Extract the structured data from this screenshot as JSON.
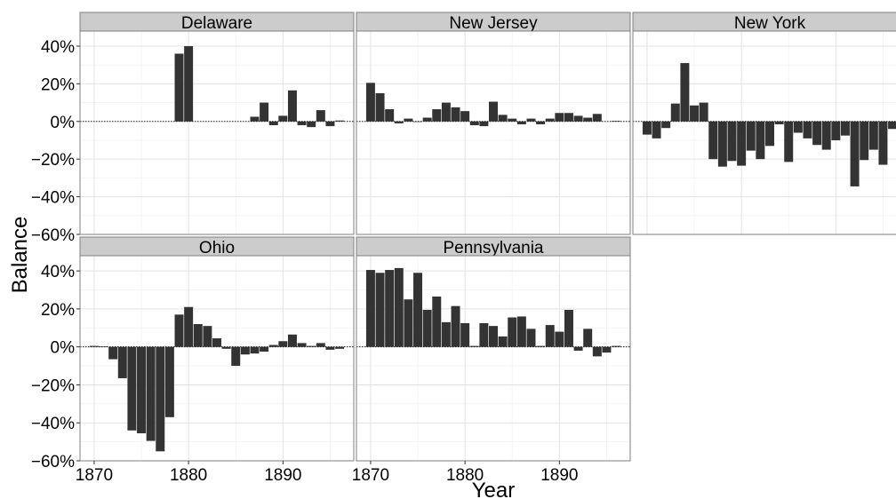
{
  "chart_data": {
    "type": "bar",
    "xlabel": "Year",
    "ylabel": "Balance",
    "xlim": [
      1868.5,
      1897.5
    ],
    "ylim": [
      -60,
      48
    ],
    "x_ticks": [
      1870,
      1880,
      1890
    ],
    "x_tick_labels": [
      "1870",
      "1880",
      "1890"
    ],
    "y_ticks": [
      -60,
      -40,
      -20,
      0,
      20,
      40
    ],
    "y_tick_labels": [
      "−60%",
      "−40%",
      "−20%",
      "0%",
      "20%",
      "40%"
    ],
    "grid": true,
    "zero_line": "dotted",
    "colors": {
      "bar": "#333333",
      "strip_fill": "#cccccc",
      "panel_border": "#7f7f7f",
      "grid_major": "#e3e3e3",
      "grid_minor": "#f2f2f2"
    },
    "panels": [
      {
        "name": "Delaware",
        "years": [
          1879,
          1880,
          1887,
          1888,
          1889,
          1890,
          1891,
          1892,
          1893,
          1894,
          1895,
          1896
        ],
        "values": [
          36,
          40,
          2.5,
          10,
          -2,
          3,
          16.5,
          -2,
          -3,
          6,
          -2.5,
          0.5
        ]
      },
      {
        "name": "New Jersey",
        "years": [
          1870,
          1871,
          1872,
          1873,
          1874,
          1875,
          1876,
          1877,
          1878,
          1879,
          1880,
          1881,
          1882,
          1883,
          1884,
          1885,
          1886,
          1887,
          1888,
          1889,
          1890,
          1891,
          1892,
          1893,
          1894,
          1896
        ],
        "values": [
          20.5,
          15,
          6.5,
          -1,
          1.5,
          0,
          2,
          6.5,
          10,
          7.5,
          5.5,
          -2,
          -2.5,
          10.5,
          3.5,
          1.5,
          -1.5,
          1.5,
          -1.5,
          1.5,
          4.5,
          4.5,
          3,
          2,
          4,
          0.3
        ]
      },
      {
        "name": "New York",
        "years": [
          1870,
          1871,
          1872,
          1873,
          1874,
          1875,
          1876,
          1877,
          1878,
          1879,
          1880,
          1881,
          1882,
          1883,
          1884,
          1885,
          1886,
          1887,
          1888,
          1889,
          1890,
          1891,
          1892,
          1893,
          1894,
          1895,
          1896,
          1897
        ],
        "values": [
          -7,
          -9,
          -3.5,
          9.5,
          31,
          8.5,
          10,
          -20,
          -24,
          -21,
          -23.5,
          -15.5,
          -20,
          -13,
          -1.5,
          -21.5,
          -6,
          -9,
          -12.5,
          -15,
          -10,
          -7.5,
          -34.5,
          -20.5,
          -15,
          -23,
          -4,
          1.5
        ]
      },
      {
        "name": "Ohio",
        "years": [
          1870,
          1871,
          1872,
          1873,
          1874,
          1875,
          1876,
          1877,
          1878,
          1879,
          1880,
          1881,
          1882,
          1883,
          1884,
          1885,
          1886,
          1887,
          1888,
          1889,
          1890,
          1891,
          1892,
          1893,
          1894,
          1895,
          1896
        ],
        "values": [
          0.5,
          0.3,
          -6.5,
          -16.5,
          -44,
          -45.5,
          -49.5,
          -55,
          -37,
          17,
          21,
          12,
          11,
          4.5,
          -1,
          -10,
          -4,
          -3.5,
          -2.5,
          1,
          3,
          6.5,
          2,
          0.5,
          2,
          -1.5,
          -1
        ]
      },
      {
        "name": "Pennsylvania",
        "years": [
          1870,
          1871,
          1872,
          1873,
          1874,
          1875,
          1876,
          1877,
          1878,
          1879,
          1880,
          1881,
          1882,
          1883,
          1884,
          1885,
          1886,
          1887,
          1888,
          1889,
          1890,
          1891,
          1892,
          1893,
          1894,
          1895,
          1896
        ],
        "values": [
          40.5,
          39,
          40.5,
          41.5,
          25,
          39,
          19.5,
          26.5,
          13,
          21.5,
          12.5,
          0.5,
          12.5,
          11,
          5.5,
          15.5,
          16,
          9.5,
          0.5,
          11.5,
          8,
          19.5,
          -2,
          9.5,
          -5,
          -3,
          0.5
        ]
      }
    ]
  }
}
